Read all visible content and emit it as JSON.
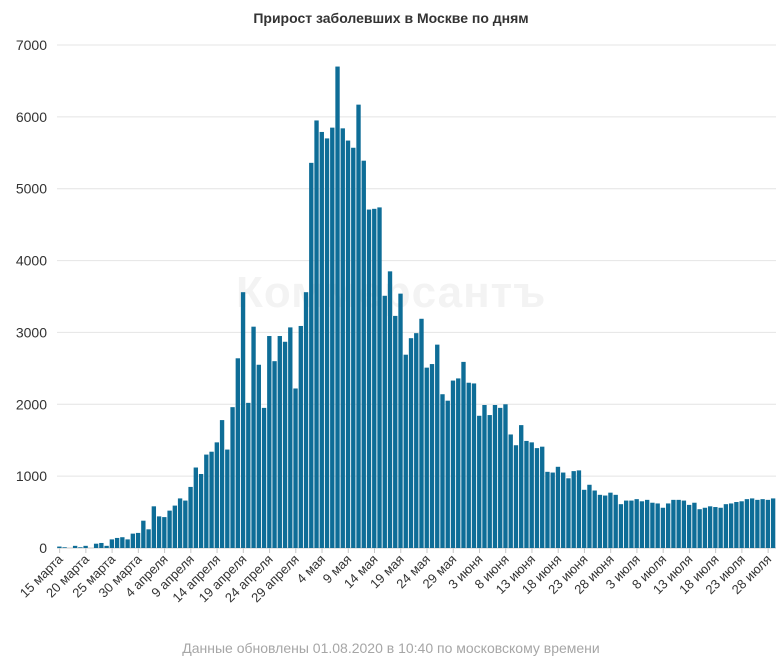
{
  "chart_data": {
    "type": "bar",
    "title": "Прирост заболевших в Москве по дням",
    "xlabel": "",
    "ylabel": "",
    "ylim": [
      0,
      7000
    ],
    "yticks": [
      0,
      1000,
      2000,
      3000,
      4000,
      5000,
      6000,
      7000
    ],
    "grid": true,
    "legend": "none",
    "bar_color": "#0e6d97",
    "x_start": "2020-03-15",
    "x_end": "2020-07-31",
    "tick_labels": [
      "15 марта",
      "20 марта",
      "25 марта",
      "30 марта",
      "4 апреля",
      "9 апреля",
      "14 апреля",
      "19 апреля",
      "24 апреля",
      "29 апреля",
      "4 мая",
      "9 мая",
      "14 мая",
      "19 мая",
      "24 мая",
      "29 мая",
      "3 июня",
      "8 июня",
      "13 июня",
      "18 июня",
      "23 июня",
      "28 июня",
      "3 июля",
      "8 июля",
      "13 июля",
      "18 июля",
      "23 июля",
      "28 июля"
    ],
    "values": [
      20,
      10,
      0,
      30,
      10,
      30,
      0,
      60,
      70,
      30,
      120,
      140,
      150,
      120,
      200,
      210,
      380,
      260,
      580,
      440,
      430,
      520,
      590,
      690,
      660,
      850,
      1120,
      1030,
      1300,
      1340,
      1470,
      1780,
      1370,
      1960,
      2640,
      3560,
      2020,
      3080,
      2550,
      1950,
      2950,
      2600,
      2950,
      2870,
      3070,
      2220,
      3090,
      3560,
      5360,
      5950,
      5790,
      5700,
      5850,
      6700,
      5840,
      5670,
      5570,
      6170,
      5390,
      4710,
      4720,
      4740,
      3510,
      3850,
      3230,
      3540,
      2690,
      2920,
      2990,
      3190,
      2510,
      2560,
      2830,
      2140,
      2050,
      2330,
      2360,
      2590,
      2300,
      2290,
      1840,
      1990,
      1850,
      1990,
      1950,
      2000,
      1580,
      1430,
      1710,
      1490,
      1470,
      1390,
      1410,
      1060,
      1050,
      1130,
      1050,
      970,
      1070,
      1080,
      810,
      880,
      800,
      740,
      730,
      770,
      740,
      610,
      660,
      660,
      680,
      650,
      670,
      630,
      620,
      560,
      620,
      670,
      670,
      660,
      600,
      630,
      540,
      560,
      580,
      570,
      560,
      610,
      620,
      640,
      650,
      680,
      690,
      670,
      680,
      670,
      690
    ]
  },
  "footer": {
    "note": "Данные обновлены 01.08.2020 в 10:40 по московскому времени"
  },
  "watermark": {
    "text": "Коммерсантъ"
  }
}
